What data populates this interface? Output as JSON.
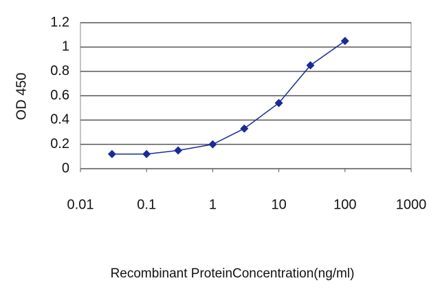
{
  "chart_data": {
    "type": "line",
    "xscale": "log",
    "y_label": "OD 450",
    "x_label": "Recombinant ProteinConcentration(ng/ml)",
    "x": [
      0.03,
      0.1,
      0.3,
      1,
      3,
      10,
      30,
      100
    ],
    "series": [
      {
        "color": "#1a2a9a",
        "values": [
          0.12,
          0.12,
          0.15,
          0.2,
          0.33,
          0.54,
          0.85,
          1.05
        ]
      }
    ],
    "xlim": [
      0.01,
      1000
    ],
    "xticks": [
      0.01,
      0.1,
      1,
      10,
      100,
      1000
    ],
    "ylim": [
      0,
      1.2
    ],
    "yticks": [
      0,
      0.2,
      0.4,
      0.6,
      0.8,
      1,
      1.2
    ],
    "grid": true
  }
}
